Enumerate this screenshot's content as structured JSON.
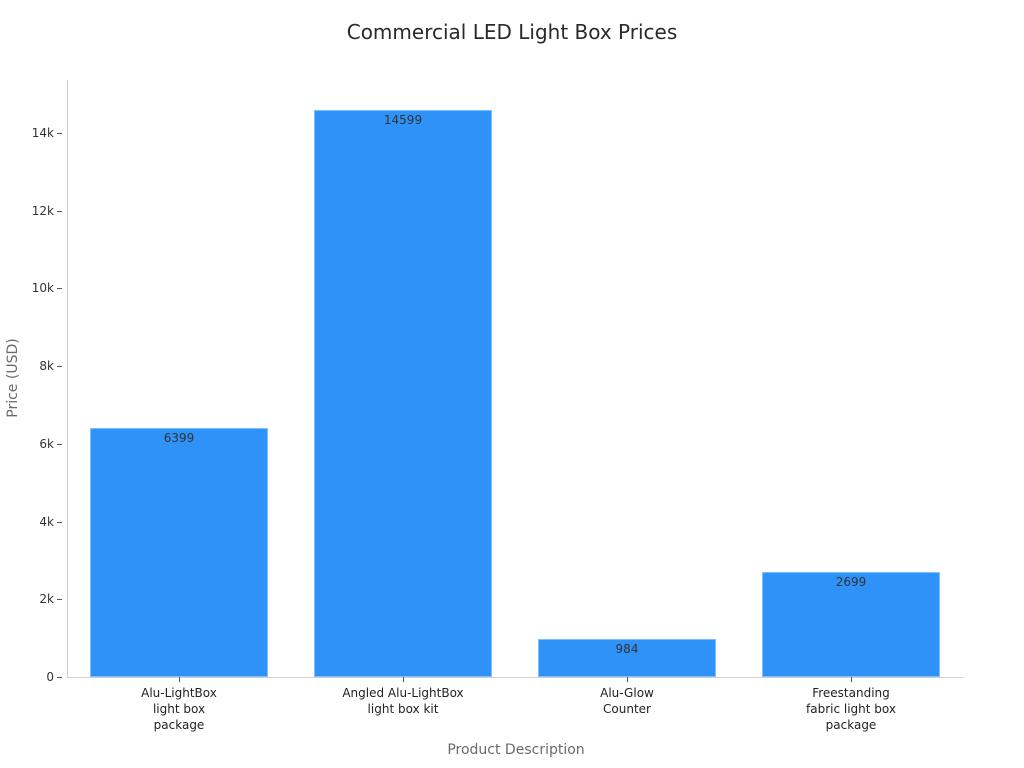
{
  "chart_data": {
    "type": "bar",
    "title": "Commercial LED Light Box Prices",
    "xlabel": "Product Description",
    "ylabel": "Price (USD)",
    "categories": [
      "Alu-LightBox\nlight box\npackage",
      "Angled Alu-LightBox\nlight box kit",
      "Alu-Glow\nCounter",
      "Freestanding\nfabric light box\npackage"
    ],
    "values": [
      6399,
      14599,
      984,
      2699
    ],
    "value_labels": [
      "6399",
      "14599",
      "984",
      "2699"
    ],
    "ylim": [
      0,
      15364
    ],
    "yticks": [
      0,
      2000,
      4000,
      6000,
      8000,
      10000,
      12000,
      14000
    ],
    "ytick_labels": [
      "0",
      "2k",
      "4k",
      "6k",
      "8k",
      "10k",
      "12k",
      "14k"
    ],
    "grid": false,
    "legend": null,
    "bar_color": "#2e92f8"
  }
}
